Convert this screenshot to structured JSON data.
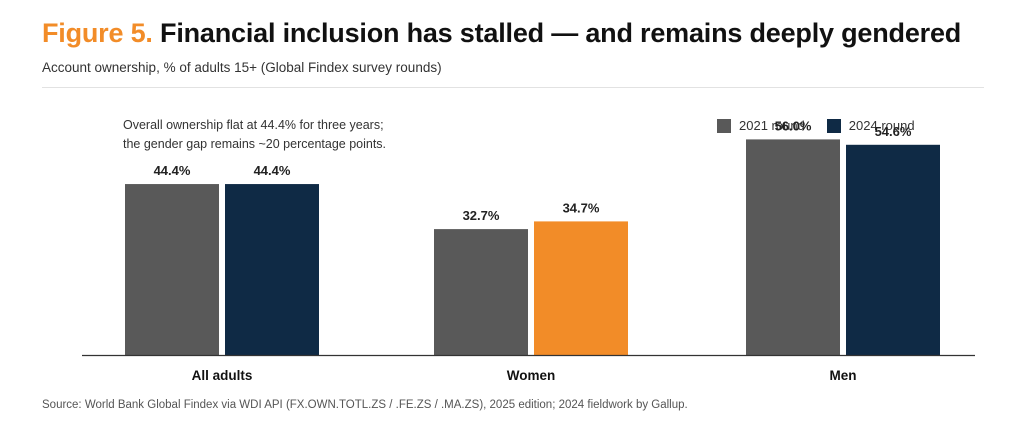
{
  "title": {
    "prefix": "Figure 5.",
    "text": " Financial inclusion has stalled — and remains deeply gendered"
  },
  "subtitle": "Account ownership, % of adults 15+ (Global Findex survey rounds)",
  "annotation": {
    "line1": "Overall ownership flat at 44.4% for three years;",
    "line2": "the gender gap remains ~20 percentage points."
  },
  "legend": {
    "round_2021": "2021 round",
    "round_2024": "2024 round"
  },
  "source": "Source: World Bank Global Findex via WDI API (FX.OWN.TOTL.ZS / .FE.ZS / .MA.ZS), 2025 edition; 2024 fieldwork by Gallup.",
  "colors": {
    "round_2021": "#595959",
    "round_2024": "#0f2a45",
    "highlight": "#f28c28",
    "accent": "#f28c28"
  },
  "chart_data": {
    "type": "bar",
    "categories": [
      "All adults",
      "Women",
      "Men"
    ],
    "series": [
      {
        "name": "2021 round",
        "values": [
          44.4,
          32.7,
          56.0
        ],
        "labels": [
          "44.4%",
          "32.7%",
          "56.0%"
        ]
      },
      {
        "name": "2024 round",
        "values": [
          44.4,
          34.7,
          54.6
        ],
        "labels": [
          "44.4%",
          "34.7%",
          "54.6%"
        ]
      }
    ],
    "highlighted": {
      "series": 1,
      "category": 1
    },
    "ylim": [
      0,
      60
    ],
    "grid": false,
    "legend_position": "top-right",
    "xlabel": "",
    "ylabel": ""
  }
}
